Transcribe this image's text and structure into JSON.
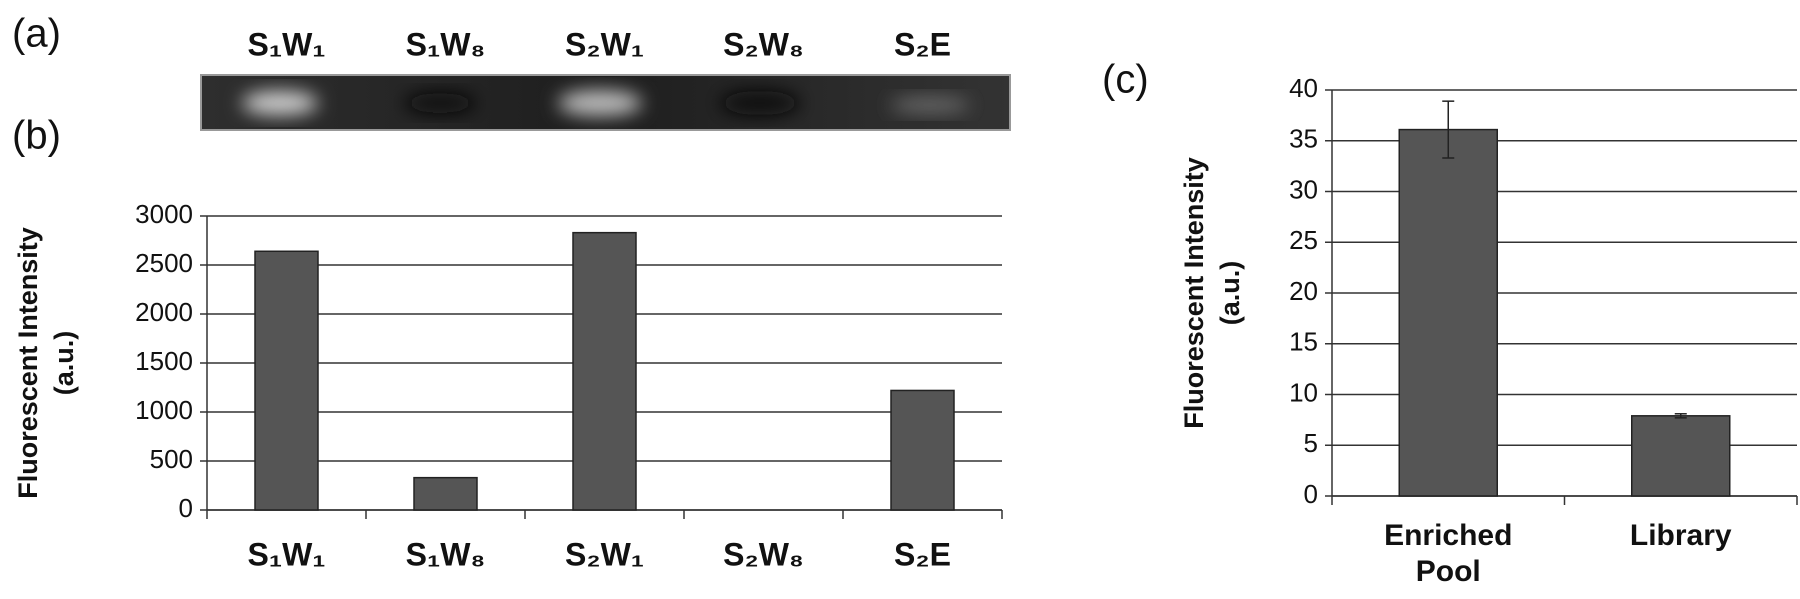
{
  "panel_a": {
    "label": "(a)",
    "lanes": [
      "S₁W₁",
      "S₁W₈",
      "S₂W₁",
      "S₂W₈",
      "S₂E"
    ]
  },
  "chart_data": [
    {
      "type": "bar",
      "panel_label": "(b)",
      "ylabel": [
        "Fluorescent Intensity",
        "(a.u.)"
      ],
      "categories": [
        "S₁W₁",
        "S₁W₈",
        "S₂W₁",
        "S₂W₈",
        "S₂E"
      ],
      "values": [
        2640,
        330,
        2830,
        0,
        1220
      ],
      "color": "#555555",
      "ylim": [
        0,
        3000
      ],
      "yticks": [
        0,
        500,
        1000,
        1500,
        2000,
        2500,
        3000
      ],
      "grid": true
    },
    {
      "type": "bar",
      "panel_label": "(c)",
      "ylabel": [
        "Fluorescent Intensity",
        "(a.u.)"
      ],
      "categories": [
        "Enriched Pool",
        "Library"
      ],
      "values": [
        36.1,
        7.9
      ],
      "errors": [
        2.8,
        0.2
      ],
      "color": "#555555",
      "ylim": [
        0,
        40
      ],
      "yticks": [
        0,
        5,
        10,
        15,
        20,
        25,
        30,
        35,
        40
      ],
      "grid": true
    }
  ]
}
